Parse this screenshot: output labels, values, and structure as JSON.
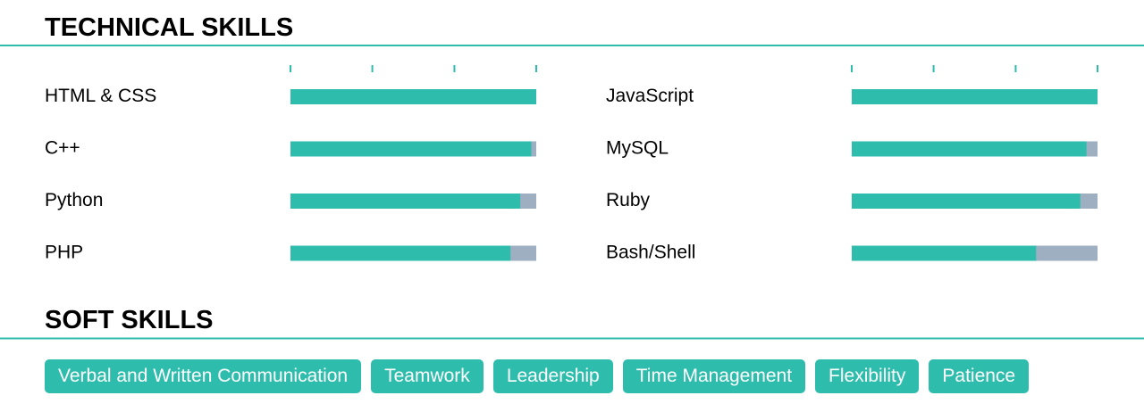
{
  "technical_skills": {
    "title": "TECHNICAL SKILLS",
    "xlim": [
      0,
      100
    ],
    "xticks": [
      0,
      33.3,
      66.7,
      100
    ],
    "skills": [
      {
        "name": "HTML & CSS",
        "value": 100
      },
      {
        "name": "C++",
        "value": 98
      },
      {
        "name": "Python",
        "value": 93.5
      },
      {
        "name": "PHP",
        "value": 89.5
      },
      {
        "name": "JavaScript",
        "value": 100
      },
      {
        "name": "MySQL",
        "value": 95.5
      },
      {
        "name": "Ruby",
        "value": 93
      },
      {
        "name": "Bash/Shell",
        "value": 75
      }
    ]
  },
  "soft_skills": {
    "title": "SOFT SKILLS",
    "items": [
      "Verbal and Written Communication",
      "Teamwork",
      "Leadership",
      "Time Management",
      "Flexibility",
      "Patience"
    ]
  }
}
